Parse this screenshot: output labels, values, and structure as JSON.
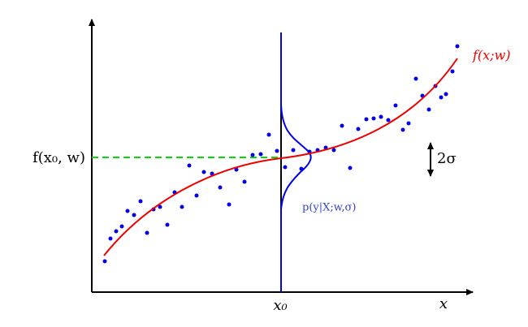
{
  "curve_label": "f(x;w)",
  "mean_label": "f(x₀, w)",
  "spread_label": "2σ",
  "distribution_label": "p(y|X;w,σ)",
  "x0_label": "x₀",
  "x_axis_label": "x"
}
